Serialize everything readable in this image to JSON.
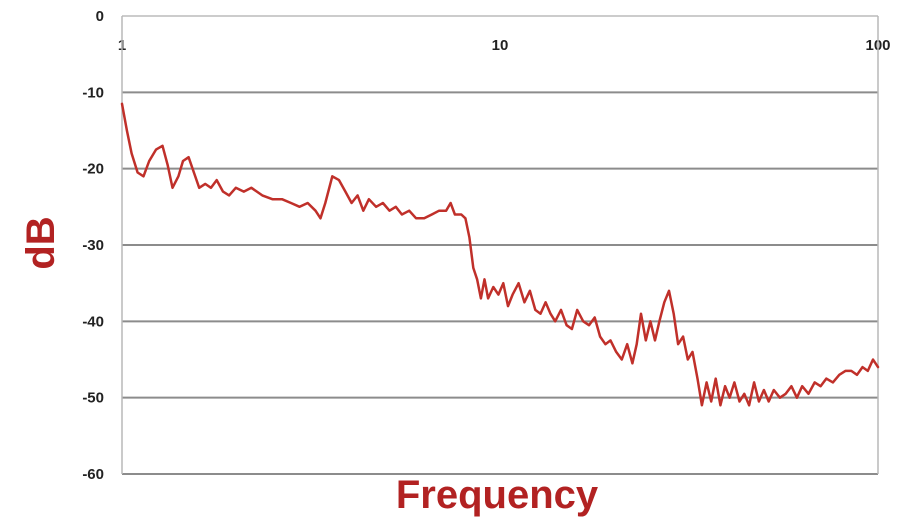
{
  "chart_data": {
    "type": "line",
    "title": "",
    "xlabel": "Frequency",
    "ylabel": "dB",
    "x_scale": "log",
    "xlim": [
      1,
      100
    ],
    "ylim": [
      -60,
      0
    ],
    "x_ticks": [
      1,
      10,
      100
    ],
    "x_tick_labels": [
      "1",
      "10",
      "100"
    ],
    "y_ticks": [
      0,
      -10,
      -20,
      -30,
      -40,
      -50,
      -60
    ],
    "y_tick_labels": [
      "0",
      "-10",
      "-20",
      "-30",
      "-40",
      "-50",
      "-60"
    ],
    "grid": {
      "horizontal": true,
      "vertical": false
    },
    "legend": "none",
    "line_color": "#c0302a",
    "axis_label_color": "#b22222",
    "series": [
      {
        "x": [
          1.0,
          1.03,
          1.06,
          1.1,
          1.14,
          1.18,
          1.23,
          1.28,
          1.32,
          1.36,
          1.41,
          1.45,
          1.5,
          1.55,
          1.6,
          1.66,
          1.72,
          1.78,
          1.85,
          1.92,
          2.0,
          2.1,
          2.2,
          2.35,
          2.5,
          2.65,
          2.8,
          2.95,
          3.1,
          3.25,
          3.35,
          3.45,
          3.6,
          3.75,
          3.9,
          4.05,
          4.2,
          4.35,
          4.5,
          4.7,
          4.9,
          5.1,
          5.3,
          5.5,
          5.75,
          6.0,
          6.3,
          6.6,
          6.9,
          7.2,
          7.4,
          7.6,
          7.9,
          8.1,
          8.3,
          8.5,
          8.7,
          8.9,
          9.1,
          9.3,
          9.6,
          9.9,
          10.2,
          10.5,
          10.8,
          11.2,
          11.6,
          12.0,
          12.4,
          12.8,
          13.2,
          13.6,
          14.0,
          14.5,
          15.0,
          15.5,
          16.0,
          16.6,
          17.2,
          17.8,
          18.4,
          19.0,
          19.6,
          20.3,
          21.0,
          21.7,
          22.4,
          23.0,
          23.6,
          24.3,
          25.0,
          25.7,
          26.4,
          27.2,
          28.0,
          28.8,
          29.6,
          30.5,
          31.4,
          32.3,
          33.3,
          34.2,
          35.2,
          36.2,
          37.2,
          38.3,
          39.4,
          40.5,
          41.7,
          43.0,
          44.3,
          45.6,
          47.0,
          48.4,
          49.9,
          51.4,
          53.0,
          55.0,
          57.0,
          59.0,
          61.0,
          63.0,
          65.5,
          68.0,
          70.5,
          73.0,
          76.0,
          79.0,
          82.0,
          85.0,
          88.0,
          91.0,
          94.0,
          97.0,
          100.0
        ],
        "y": [
          -11.5,
          -15.0,
          -18.0,
          -20.5,
          -21.0,
          -19.0,
          -17.5,
          -17.0,
          -19.5,
          -22.5,
          -21.0,
          -19.0,
          -18.5,
          -20.5,
          -22.5,
          -22.0,
          -22.5,
          -21.5,
          -23.0,
          -23.5,
          -22.5,
          -23.0,
          -22.5,
          -23.5,
          -24.0,
          -24.0,
          -24.5,
          -25.0,
          -24.5,
          -25.5,
          -26.5,
          -24.5,
          -21.0,
          -21.5,
          -23.0,
          -24.5,
          -23.5,
          -25.5,
          -24.0,
          -25.0,
          -24.5,
          -25.5,
          -25.0,
          -26.0,
          -25.5,
          -26.5,
          -26.5,
          -26.0,
          -25.5,
          -25.5,
          -24.5,
          -26.0,
          -26.0,
          -26.5,
          -29.0,
          -33.0,
          -34.5,
          -37.0,
          -34.5,
          -37.0,
          -35.5,
          -36.5,
          -35.0,
          -38.0,
          -36.5,
          -35.0,
          -37.5,
          -36.0,
          -38.5,
          -39.0,
          -37.5,
          -39.0,
          -40.0,
          -38.5,
          -40.5,
          -41.0,
          -38.5,
          -40.0,
          -40.5,
          -39.5,
          -42.0,
          -43.0,
          -42.5,
          -44.0,
          -45.0,
          -43.0,
          -45.5,
          -43.0,
          -39.0,
          -42.5,
          -40.0,
          -42.5,
          -40.0,
          -37.5,
          -36.0,
          -39.0,
          -43.0,
          -42.0,
          -45.0,
          -44.0,
          -47.5,
          -51.0,
          -48.0,
          -50.5,
          -47.5,
          -51.0,
          -48.5,
          -50.0,
          -48.0,
          -50.5,
          -49.5,
          -51.0,
          -48.0,
          -50.5,
          -49.0,
          -50.5,
          -49.0,
          -50.0,
          -49.5,
          -48.5,
          -50.0,
          -48.5,
          -49.5,
          -48.0,
          -48.5,
          -47.5,
          -48.0,
          -47.0,
          -46.5,
          -46.5,
          -47.0,
          -46.0,
          -46.5,
          -45.0,
          -46.0
        ]
      }
    ]
  }
}
